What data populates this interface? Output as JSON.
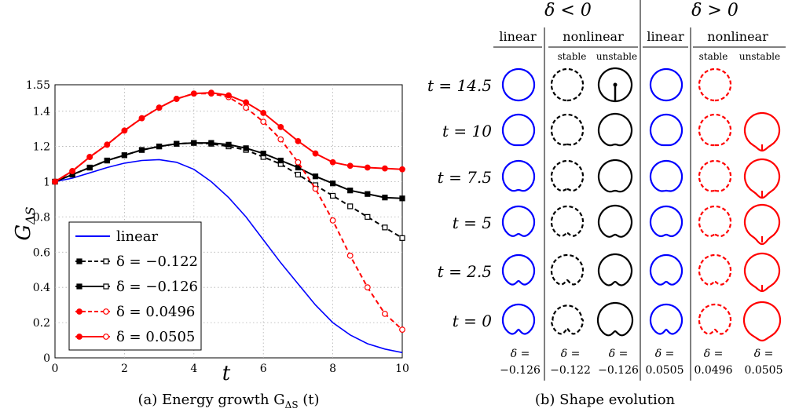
{
  "chart_data": {
    "type": "line",
    "title": "",
    "xlabel": "t",
    "ylabel": "G_{ΔS}",
    "xlim": [
      0,
      10
    ],
    "ylim": [
      0,
      1.55
    ],
    "xticks": [
      "0",
      "2",
      "4",
      "6",
      "8",
      "10"
    ],
    "yticks": [
      "0",
      "0.2",
      "0.4",
      "0.6",
      "0.8",
      "1",
      "1.2",
      "1.4",
      "1.55"
    ],
    "grid": true,
    "legend_position": "bottom-left",
    "series": [
      {
        "name": "linear",
        "color": "#0000ff",
        "dash": "solid",
        "marker": "none",
        "x": [
          0,
          0.5,
          1,
          1.5,
          2,
          2.5,
          3,
          3.5,
          4,
          4.5,
          5,
          5.5,
          6,
          6.5,
          7,
          7.5,
          8,
          8.5,
          9,
          9.5,
          10
        ],
        "y": [
          1,
          1.02,
          1.05,
          1.08,
          1.105,
          1.12,
          1.125,
          1.11,
          1.07,
          1.0,
          0.91,
          0.8,
          0.67,
          0.54,
          0.42,
          0.3,
          0.2,
          0.13,
          0.08,
          0.05,
          0.03
        ]
      },
      {
        "name": "δ = −0.122",
        "color": "#000000",
        "dash": "dashed",
        "marker": "square",
        "x": [
          0,
          0.5,
          1,
          1.5,
          2,
          2.5,
          3,
          3.5,
          4,
          4.5,
          5,
          5.5,
          6,
          6.5,
          7,
          7.5,
          8,
          8.5,
          9,
          9.5,
          10
        ],
        "y": [
          1,
          1.04,
          1.08,
          1.12,
          1.15,
          1.18,
          1.2,
          1.215,
          1.22,
          1.215,
          1.2,
          1.18,
          1.14,
          1.1,
          1.04,
          0.98,
          0.92,
          0.86,
          0.8,
          0.74,
          0.68
        ]
      },
      {
        "name": "δ = −0.126",
        "color": "#000000",
        "dash": "solid",
        "marker": "square",
        "x": [
          0,
          0.5,
          1,
          1.5,
          2,
          2.5,
          3,
          3.5,
          4,
          4.5,
          5,
          5.5,
          6,
          6.5,
          7,
          7.5,
          8,
          8.5,
          9,
          9.5,
          10
        ],
        "y": [
          1,
          1.04,
          1.08,
          1.12,
          1.15,
          1.18,
          1.2,
          1.215,
          1.22,
          1.22,
          1.21,
          1.19,
          1.16,
          1.12,
          1.08,
          1.03,
          0.99,
          0.95,
          0.93,
          0.91,
          0.905
        ]
      },
      {
        "name": "δ = 0.0496",
        "color": "#ff0000",
        "dash": "dashed",
        "marker": "circle",
        "x": [
          0,
          0.5,
          1,
          1.5,
          2,
          2.5,
          3,
          3.5,
          4,
          4.5,
          5,
          5.5,
          6,
          6.5,
          7,
          7.5,
          8,
          8.5,
          9,
          9.5,
          10
        ],
        "y": [
          1,
          1.06,
          1.14,
          1.21,
          1.29,
          1.36,
          1.42,
          1.47,
          1.5,
          1.5,
          1.48,
          1.42,
          1.34,
          1.24,
          1.11,
          0.96,
          0.78,
          0.58,
          0.4,
          0.25,
          0.16
        ]
      },
      {
        "name": "δ = 0.0505",
        "color": "#ff0000",
        "dash": "solid",
        "marker": "circle",
        "x": [
          0,
          0.5,
          1,
          1.5,
          2,
          2.5,
          3,
          3.5,
          4,
          4.5,
          5,
          5.5,
          6,
          6.5,
          7,
          7.5,
          8,
          8.5,
          9,
          9.5,
          10
        ],
        "y": [
          1,
          1.06,
          1.14,
          1.21,
          1.29,
          1.36,
          1.42,
          1.47,
          1.5,
          1.505,
          1.49,
          1.45,
          1.39,
          1.31,
          1.23,
          1.16,
          1.11,
          1.09,
          1.08,
          1.075,
          1.07
        ]
      }
    ]
  },
  "caption_a": "(a) Energy growth G",
  "caption_a_sub": "ΔS",
  "caption_a_tail": " (t)",
  "caption_b": "(b) Shape evolution",
  "shape_panel": {
    "group_neg": "δ < 0",
    "group_pos": "δ > 0",
    "col_linear": "linear",
    "col_nonlinear": "nonlinear",
    "sub_stable": "stable",
    "sub_unstable": "unstable",
    "times": [
      "t = 14.5",
      "t = 10",
      "t = 7.5",
      "t = 5",
      "t = 2.5",
      "t = 0"
    ],
    "deltas_top": [
      "δ =",
      "δ =",
      "δ =",
      "δ =",
      "δ =",
      "δ ="
    ],
    "deltas_bottom": [
      "−0.126",
      "−0.122",
      "−0.126",
      "0.0505",
      "0.0496",
      "0.0505"
    ],
    "columns": [
      {
        "id": "neg-linear",
        "color": "#0000ff",
        "dash": "solid"
      },
      {
        "id": "neg-stable",
        "color": "#000000",
        "dash": "dashed"
      },
      {
        "id": "neg-unstable",
        "color": "#000000",
        "dash": "solid"
      },
      {
        "id": "pos-linear",
        "color": "#0000ff",
        "dash": "solid"
      },
      {
        "id": "pos-stable",
        "color": "#ff0000",
        "dash": "dashed"
      },
      {
        "id": "pos-unstable",
        "color": "#ff0000",
        "dash": "solid"
      }
    ]
  }
}
